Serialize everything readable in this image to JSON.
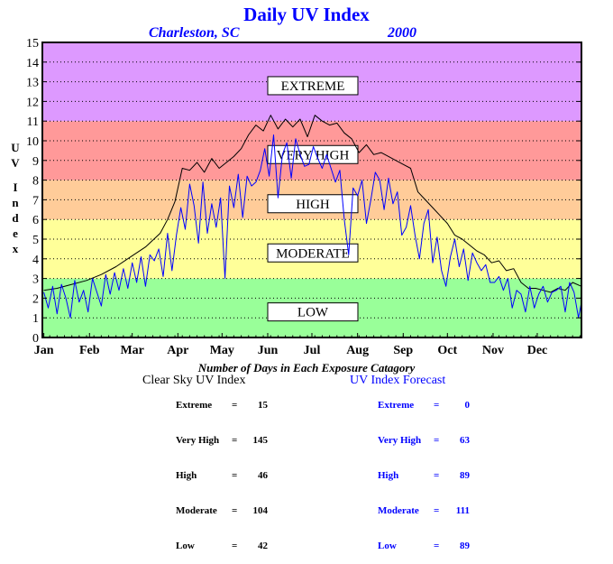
{
  "chart_data": {
    "type": "line",
    "title": "Daily UV Index",
    "subtitle_location": "Charleston, SC",
    "subtitle_year": "2000",
    "ylabel": "UV Index",
    "ylim": [
      0,
      15
    ],
    "yticks": [
      "0",
      "1",
      "2",
      "3",
      "4",
      "5",
      "6",
      "7",
      "8",
      "9",
      "10",
      "11",
      "12",
      "13",
      "14",
      "15"
    ],
    "xlim": [
      0,
      366
    ],
    "xticks": [
      {
        "label": "Jan",
        "day": 1
      },
      {
        "label": "Feb",
        "day": 32
      },
      {
        "label": "Mar",
        "day": 61
      },
      {
        "label": "Apr",
        "day": 92
      },
      {
        "label": "May",
        "day": 122
      },
      {
        "label": "Jun",
        "day": 153
      },
      {
        "label": "Jul",
        "day": 183
      },
      {
        "label": "Aug",
        "day": 214
      },
      {
        "label": "Sep",
        "day": 245
      },
      {
        "label": "Oct",
        "day": 275
      },
      {
        "label": "Nov",
        "day": 306
      },
      {
        "label": "Dec",
        "day": 336
      }
    ],
    "grid": true,
    "bands": [
      {
        "label": "LOW",
        "from": 0,
        "to": 3,
        "color": "#99ff99",
        "label_y": 1.3
      },
      {
        "label": "MODERATE",
        "from": 3,
        "to": 6,
        "color": "#ffff99",
        "label_y": 4.3
      },
      {
        "label": "HIGH",
        "from": 6,
        "to": 8,
        "color": "#ffcc99",
        "label_y": 6.8
      },
      {
        "label": "VERY HIGH",
        "from": 8,
        "to": 11,
        "color": "#ff9999",
        "label_y": 9.3
      },
      {
        "label": "EXTREME",
        "from": 11,
        "to": 15,
        "color": "#dd99ff",
        "label_y": 12.8
      }
    ],
    "series": [
      {
        "key": "clear_sky",
        "color": "#000000",
        "x": [
          1,
          10,
          20,
          30,
          40,
          50,
          60,
          70,
          80,
          85,
          90,
          95,
          100,
          105,
          110,
          115,
          120,
          125,
          130,
          135,
          140,
          145,
          150,
          155,
          160,
          165,
          170,
          175,
          180,
          185,
          190,
          195,
          200,
          205,
          210,
          215,
          220,
          225,
          230,
          235,
          240,
          245,
          250,
          255,
          260,
          265,
          270,
          275,
          280,
          285,
          290,
          295,
          300,
          305,
          310,
          315,
          320,
          325,
          330,
          335,
          340,
          345,
          350,
          355,
          360,
          366
        ],
        "values": [
          2.4,
          2.5,
          2.7,
          2.9,
          3.2,
          3.6,
          4.1,
          4.6,
          5.3,
          6.0,
          6.9,
          8.6,
          8.5,
          8.9,
          8.4,
          9.1,
          8.6,
          8.9,
          9.2,
          9.6,
          10.3,
          10.8,
          10.5,
          11.3,
          10.6,
          11.1,
          10.7,
          11.1,
          10.2,
          11.3,
          11.0,
          10.8,
          10.9,
          10.4,
          10.1,
          9.4,
          9.8,
          9.3,
          9.4,
          9.2,
          9.0,
          8.8,
          8.6,
          7.4,
          7.0,
          6.6,
          6.2,
          5.8,
          5.2,
          5.0,
          4.7,
          4.4,
          4.2,
          3.8,
          3.9,
          3.4,
          3.5,
          2.8,
          2.5,
          2.5,
          2.4,
          2.3,
          2.5,
          2.4,
          2.8,
          2.6
        ]
      },
      {
        "key": "forecast",
        "color": "#0000ff",
        "x": [
          1,
          4,
          7,
          10,
          13,
          16,
          19,
          22,
          25,
          28,
          31,
          34,
          37,
          40,
          43,
          46,
          49,
          52,
          55,
          58,
          61,
          64,
          67,
          70,
          73,
          76,
          79,
          82,
          85,
          88,
          91,
          94,
          97,
          100,
          103,
          106,
          109,
          112,
          115,
          118,
          121,
          124,
          127,
          130,
          133,
          136,
          139,
          142,
          145,
          148,
          151,
          154,
          157,
          160,
          163,
          166,
          169,
          172,
          175,
          178,
          181,
          184,
          187,
          190,
          193,
          196,
          199,
          202,
          205,
          208,
          211,
          214,
          217,
          220,
          223,
          226,
          229,
          232,
          235,
          238,
          241,
          244,
          247,
          250,
          253,
          256,
          259,
          262,
          265,
          268,
          271,
          274,
          277,
          280,
          283,
          286,
          289,
          292,
          295,
          298,
          301,
          304,
          307,
          310,
          313,
          316,
          319,
          322,
          325,
          328,
          331,
          334,
          337,
          340,
          343,
          346,
          349,
          352,
          355,
          358,
          361,
          364,
          366
        ],
        "values": [
          2.3,
          1.5,
          2.6,
          1.2,
          2.7,
          2.0,
          1.0,
          2.9,
          1.8,
          2.4,
          1.3,
          3.0,
          2.3,
          1.6,
          3.2,
          2.2,
          3.3,
          2.4,
          3.5,
          2.5,
          3.8,
          2.8,
          4.1,
          2.6,
          4.2,
          3.9,
          4.5,
          3.1,
          5.3,
          3.4,
          5.2,
          6.6,
          5.5,
          7.8,
          6.7,
          4.8,
          7.9,
          5.3,
          6.8,
          5.6,
          7.1,
          3.0,
          7.7,
          6.6,
          8.3,
          6.1,
          8.2,
          7.7,
          7.9,
          8.5,
          9.6,
          8.2,
          10.3,
          7.1,
          9.3,
          9.9,
          8.1,
          10.1,
          9.3,
          8.7,
          8.8,
          9.7,
          9.1,
          8.6,
          9.3,
          8.6,
          7.9,
          8.5,
          6.0,
          4.2,
          7.6,
          7.2,
          8.0,
          5.8,
          7.0,
          8.4,
          8.0,
          6.5,
          8.1,
          6.8,
          7.4,
          5.2,
          5.6,
          6.7,
          5.2,
          4.0,
          5.8,
          6.5,
          3.8,
          5.1,
          3.4,
          2.6,
          4.1,
          5.0,
          3.6,
          4.5,
          2.9,
          4.3,
          3.8,
          3.4,
          3.7,
          2.8,
          2.8,
          3.1,
          2.4,
          3.0,
          1.5,
          2.4,
          2.2,
          1.3,
          2.6,
          1.5,
          2.2,
          2.6,
          1.8,
          2.3,
          2.4,
          2.6,
          1.3,
          2.8,
          2.3,
          1.0,
          1.8
        ]
      }
    ],
    "footer_title": "Number of Days in Each Exposure Catagory",
    "stats": [
      {
        "title": "Clear Sky UV Index",
        "color": "#000000",
        "rows": [
          {
            "label": "Extreme",
            "value": "15"
          },
          {
            "label": "Very High",
            "value": "145"
          },
          {
            "label": "High",
            "value": "46"
          },
          {
            "label": "Moderate",
            "value": "104"
          },
          {
            "label": "Low",
            "value": "42"
          }
        ]
      },
      {
        "title": "UV Index Forecast",
        "color": "#0000ff",
        "rows": [
          {
            "label": "Extreme",
            "value": "0"
          },
          {
            "label": "Very High",
            "value": "63"
          },
          {
            "label": "High",
            "value": "89"
          },
          {
            "label": "Moderate",
            "value": "111"
          },
          {
            "label": "Low",
            "value": "89"
          }
        ]
      }
    ]
  }
}
